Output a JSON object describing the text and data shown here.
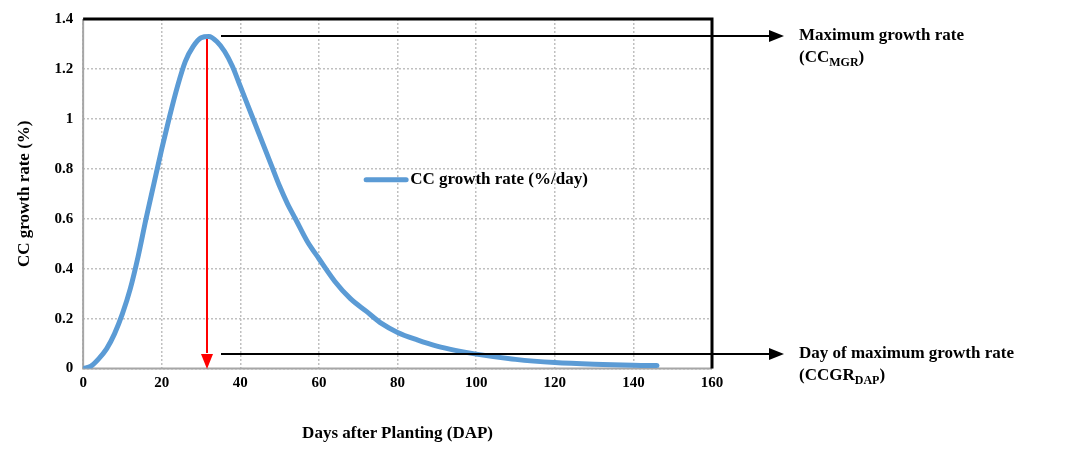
{
  "chart_data": {
    "type": "line",
    "xlabel": "Days after Planting (DAP)",
    "ylabel": "CC growth rate (%)",
    "series": [
      {
        "name": "CC growth rate (%/day)",
        "color": "#5b9bd5",
        "x": [
          0,
          2,
          4,
          6,
          8,
          10,
          12,
          14,
          16,
          18,
          20,
          22,
          24,
          26,
          28,
          30,
          32,
          34,
          36,
          38,
          40,
          42,
          44,
          46,
          48,
          50,
          52,
          54,
          57,
          60,
          64,
          68,
          72,
          76,
          80,
          85,
          90,
          95,
          100,
          110,
          120,
          130,
          140,
          146
        ],
        "values": [
          0,
          0.01,
          0.04,
          0.08,
          0.14,
          0.22,
          0.32,
          0.45,
          0.6,
          0.74,
          0.88,
          1.01,
          1.13,
          1.23,
          1.29,
          1.325,
          1.33,
          1.31,
          1.27,
          1.21,
          1.13,
          1.05,
          0.97,
          0.89,
          0.81,
          0.73,
          0.66,
          0.6,
          0.51,
          0.44,
          0.35,
          0.28,
          0.23,
          0.18,
          0.145,
          0.115,
          0.09,
          0.072,
          0.058,
          0.037,
          0.024,
          0.017,
          0.013,
          0.012
        ]
      }
    ],
    "xlim": [
      0,
      160
    ],
    "xticks": [
      0,
      20,
      40,
      60,
      80,
      100,
      120,
      140,
      160
    ],
    "ylim": [
      0,
      1.4
    ],
    "yticks": [
      0,
      0.2,
      0.4,
      0.6,
      0.8,
      1,
      1.2,
      1.4
    ],
    "grid": true,
    "legend": "center",
    "marker": "none",
    "line_style": "solid",
    "ref_lines": [
      {
        "axis": "x",
        "value": 31.4,
        "color": "#ff0000"
      },
      {
        "axis": "y",
        "value": 1.33,
        "color": "#000000",
        "label": "Maximum growth rate (CC$_{MGR}$)"
      },
      {
        "axis": "y",
        "value": 0.06,
        "color": "#000000",
        "label": "Day of maximum growth rate (CCGR$_{DAP}$)"
      }
    ]
  }
}
